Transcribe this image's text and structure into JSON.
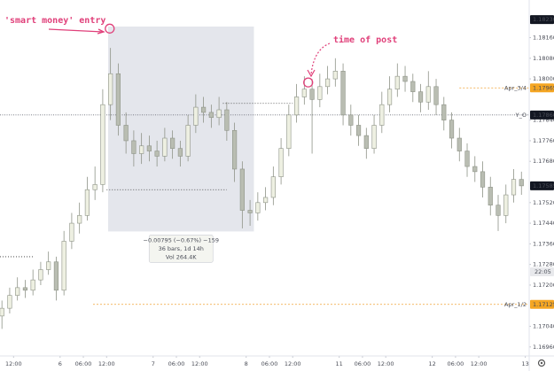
{
  "chart_data": {
    "type": "candlestick",
    "x": [
      -15,
      -13,
      -11,
      -9,
      -7,
      -5,
      -3,
      -1,
      1,
      3,
      5,
      7,
      9,
      11,
      13,
      15,
      17,
      19,
      21,
      23,
      25,
      27,
      29,
      31,
      33,
      35,
      37,
      39,
      41,
      43,
      45,
      47,
      49,
      51,
      53,
      55,
      57,
      59,
      61,
      63,
      65,
      67,
      69,
      71,
      73,
      75,
      77,
      79,
      81,
      83,
      85,
      87,
      89,
      91,
      93,
      95,
      97,
      99,
      101,
      103,
      105,
      107,
      109,
      111,
      113,
      115,
      117,
      119
    ],
    "opens": [
      1.1708,
      1.1711,
      1.1716,
      1.1719,
      1.1718,
      1.1722,
      1.1726,
      1.1729,
      1.1718,
      1.1737,
      1.1744,
      1.1747,
      1.1757,
      1.1759,
      1.179,
      1.1802,
      1.1782,
      1.1776,
      1.1771,
      1.1774,
      1.1772,
      1.177,
      1.1777,
      1.1773,
      1.177,
      1.1782,
      1.1789,
      1.1787,
      1.1785,
      1.1788,
      1.178,
      1.1765,
      1.1749,
      1.1748,
      1.1752,
      1.1754,
      1.1762,
      1.1773,
      1.1786,
      1.1793,
      1.1796,
      1.1792,
      1.1797,
      1.18,
      1.1803,
      1.1786,
      1.1782,
      1.1778,
      1.1773,
      1.1782,
      1.179,
      1.1796,
      1.1801,
      1.1799,
      1.1795,
      1.1791,
      1.1797,
      1.179,
      1.1784,
      1.1777,
      1.1772,
      1.1766,
      1.1764,
      1.1758,
      1.1751,
      1.1747,
      1.1755,
      1.1761
    ],
    "highs": [
      1.1714,
      1.1719,
      1.1723,
      1.1722,
      1.1726,
      1.1729,
      1.1733,
      1.1731,
      1.1741,
      1.1748,
      1.1752,
      1.1762,
      1.1766,
      1.1796,
      1.1812,
      1.1806,
      1.1787,
      1.178,
      1.1779,
      1.1778,
      1.1776,
      1.1781,
      1.178,
      1.1776,
      1.1786,
      1.1794,
      1.1793,
      1.179,
      1.1793,
      1.1791,
      1.1783,
      1.1768,
      1.1753,
      1.1756,
      1.1758,
      1.1766,
      1.1777,
      1.179,
      1.1798,
      1.1801,
      1.18,
      1.1802,
      1.1805,
      1.1808,
      1.1806,
      1.179,
      1.1786,
      1.1781,
      1.1786,
      1.1795,
      1.1801,
      1.1806,
      1.1805,
      1.1802,
      1.1798,
      1.1803,
      1.18,
      1.1793,
      1.1787,
      1.1781,
      1.1775,
      1.177,
      1.1768,
      1.1762,
      1.1755,
      1.1759,
      1.1765,
      1.1764
    ],
    "lows": [
      1.1703,
      1.1709,
      1.1714,
      1.1715,
      1.1716,
      1.172,
      1.1724,
      1.1714,
      1.1716,
      1.1734,
      1.174,
      1.1745,
      1.1753,
      1.1756,
      1.1784,
      1.1778,
      1.1771,
      1.1766,
      1.1767,
      1.1768,
      1.1766,
      1.1768,
      1.1769,
      1.1766,
      1.1768,
      1.1779,
      1.1783,
      1.1781,
      1.1782,
      1.1776,
      1.176,
      1.1742,
      1.1743,
      1.1745,
      1.1749,
      1.1751,
      1.1759,
      1.177,
      1.1783,
      1.179,
      1.1771,
      1.1789,
      1.1794,
      1.1797,
      1.1782,
      1.1778,
      1.1774,
      1.1769,
      1.1771,
      1.1779,
      1.1787,
      1.1793,
      1.1795,
      1.1791,
      1.1787,
      1.1788,
      1.1786,
      1.178,
      1.1773,
      1.1768,
      1.1762,
      1.176,
      1.1754,
      1.1747,
      1.1741,
      1.1744,
      1.1752,
      1.1755
    ],
    "closes": [
      1.1711,
      1.1716,
      1.1719,
      1.1718,
      1.1722,
      1.1726,
      1.1729,
      1.1718,
      1.1737,
      1.1744,
      1.1747,
      1.1757,
      1.1759,
      1.179,
      1.1802,
      1.1782,
      1.1776,
      1.1771,
      1.1774,
      1.1772,
      1.177,
      1.1777,
      1.1773,
      1.177,
      1.1782,
      1.1789,
      1.1787,
      1.1785,
      1.1788,
      1.178,
      1.1765,
      1.1749,
      1.1748,
      1.1752,
      1.1754,
      1.1762,
      1.1773,
      1.1786,
      1.1793,
      1.1796,
      1.1792,
      1.1797,
      1.18,
      1.1803,
      1.1786,
      1.1782,
      1.1778,
      1.1773,
      1.1782,
      1.179,
      1.1796,
      1.1801,
      1.1799,
      1.1795,
      1.1791,
      1.1797,
      1.179,
      1.1784,
      1.1777,
      1.1772,
      1.1766,
      1.1764,
      1.1758,
      1.1751,
      1.1747,
      1.1755,
      1.1761,
      1.17585
    ],
    "up_color": "#eef0e2",
    "down_color": "#b9bdb2",
    "xlim": [
      -15.5,
      121
    ],
    "ylim": [
      1.16925,
      1.18306
    ],
    "xticks": [
      {
        "value": -12,
        "label": "12:00"
      },
      {
        "value": 0,
        "label": "6"
      },
      {
        "value": 6,
        "label": "06:00"
      },
      {
        "value": 12,
        "label": "12:00"
      },
      {
        "value": 24,
        "label": "7"
      },
      {
        "value": 30,
        "label": "06:00"
      },
      {
        "value": 36,
        "label": "12:00"
      },
      {
        "value": 48,
        "label": "8"
      },
      {
        "value": 54,
        "label": "06:00"
      },
      {
        "value": 60,
        "label": "12:00"
      },
      {
        "value": 72,
        "label": "11"
      },
      {
        "value": 78,
        "label": "06:00"
      },
      {
        "value": 84,
        "label": "12:00"
      },
      {
        "value": 96,
        "label": "12"
      },
      {
        "value": 102,
        "label": "06:00"
      },
      {
        "value": 108,
        "label": "12:00"
      },
      {
        "value": 120,
        "label": "13"
      }
    ],
    "yticks": [
      {
        "value": 1.1816,
        "label": "1.18160"
      },
      {
        "value": 1.1808,
        "label": "1.18080"
      },
      {
        "value": 1.18,
        "label": "1.18000"
      },
      {
        "value": 1.1784,
        "label": "1.17840"
      },
      {
        "value": 1.1776,
        "label": "1.17760"
      },
      {
        "value": 1.1768,
        "label": "1.17680"
      },
      {
        "value": 1.1752,
        "label": "1.17520"
      },
      {
        "value": 1.1744,
        "label": "1.17440"
      },
      {
        "value": 1.1736,
        "label": "1.17360"
      },
      {
        "value": 1.1728,
        "label": "1.17280"
      },
      {
        "value": 1.172,
        "label": "1.17200"
      },
      {
        "value": 1.1704,
        "label": "1.17040"
      },
      {
        "value": 1.1696,
        "label": "1.16960"
      }
    ],
    "price_tags": [
      {
        "value": 1.1823,
        "label": "1.18230",
        "color": "#131722"
      },
      {
        "value": 1.17965,
        "label": "1.17965",
        "color": "#f5a623"
      },
      {
        "value": 1.1786,
        "label": "1.17860",
        "color": "#131722"
      },
      {
        "value": 1.17585,
        "label": "1.17585",
        "color": "#131722"
      },
      {
        "value": 1.17125,
        "label": "1.17125",
        "color": "#f5a623"
      }
    ],
    "countdown": "22:05",
    "levels": [
      {
        "name": "Apr_3/4",
        "value": 1.17965,
        "from": 103,
        "color": "#f0a030"
      },
      {
        "name": "Y_O",
        "value": 1.1786,
        "from": -15.5,
        "color": "#6a6d78"
      },
      {
        "name": "Apr_1/2",
        "value": 1.17125,
        "from": 8.5,
        "color": "#f0a030"
      }
    ],
    "dotted_lines": [
      {
        "value": 1.17905,
        "x": [
          42,
          60
        ]
      },
      {
        "value": 1.1757,
        "x": [
          12,
          43
        ]
      },
      {
        "value": 1.1731,
        "x": [
          -15.5,
          -7
        ]
      }
    ],
    "measure": {
      "hours": [
        12.4,
        50
      ],
      "prices": [
        1.18203,
        1.17408
      ],
      "lines": [
        "−0.00795 (−0.67%) −159",
        "36 bars, 1d 14h",
        "Vol 264.4K"
      ]
    },
    "annotations": [
      {
        "text": "'smart money' entry",
        "at": [
          12.8,
          1.18195
        ]
      },
      {
        "text": "time of post",
        "at": [
          64,
          1.17986
        ]
      }
    ]
  }
}
